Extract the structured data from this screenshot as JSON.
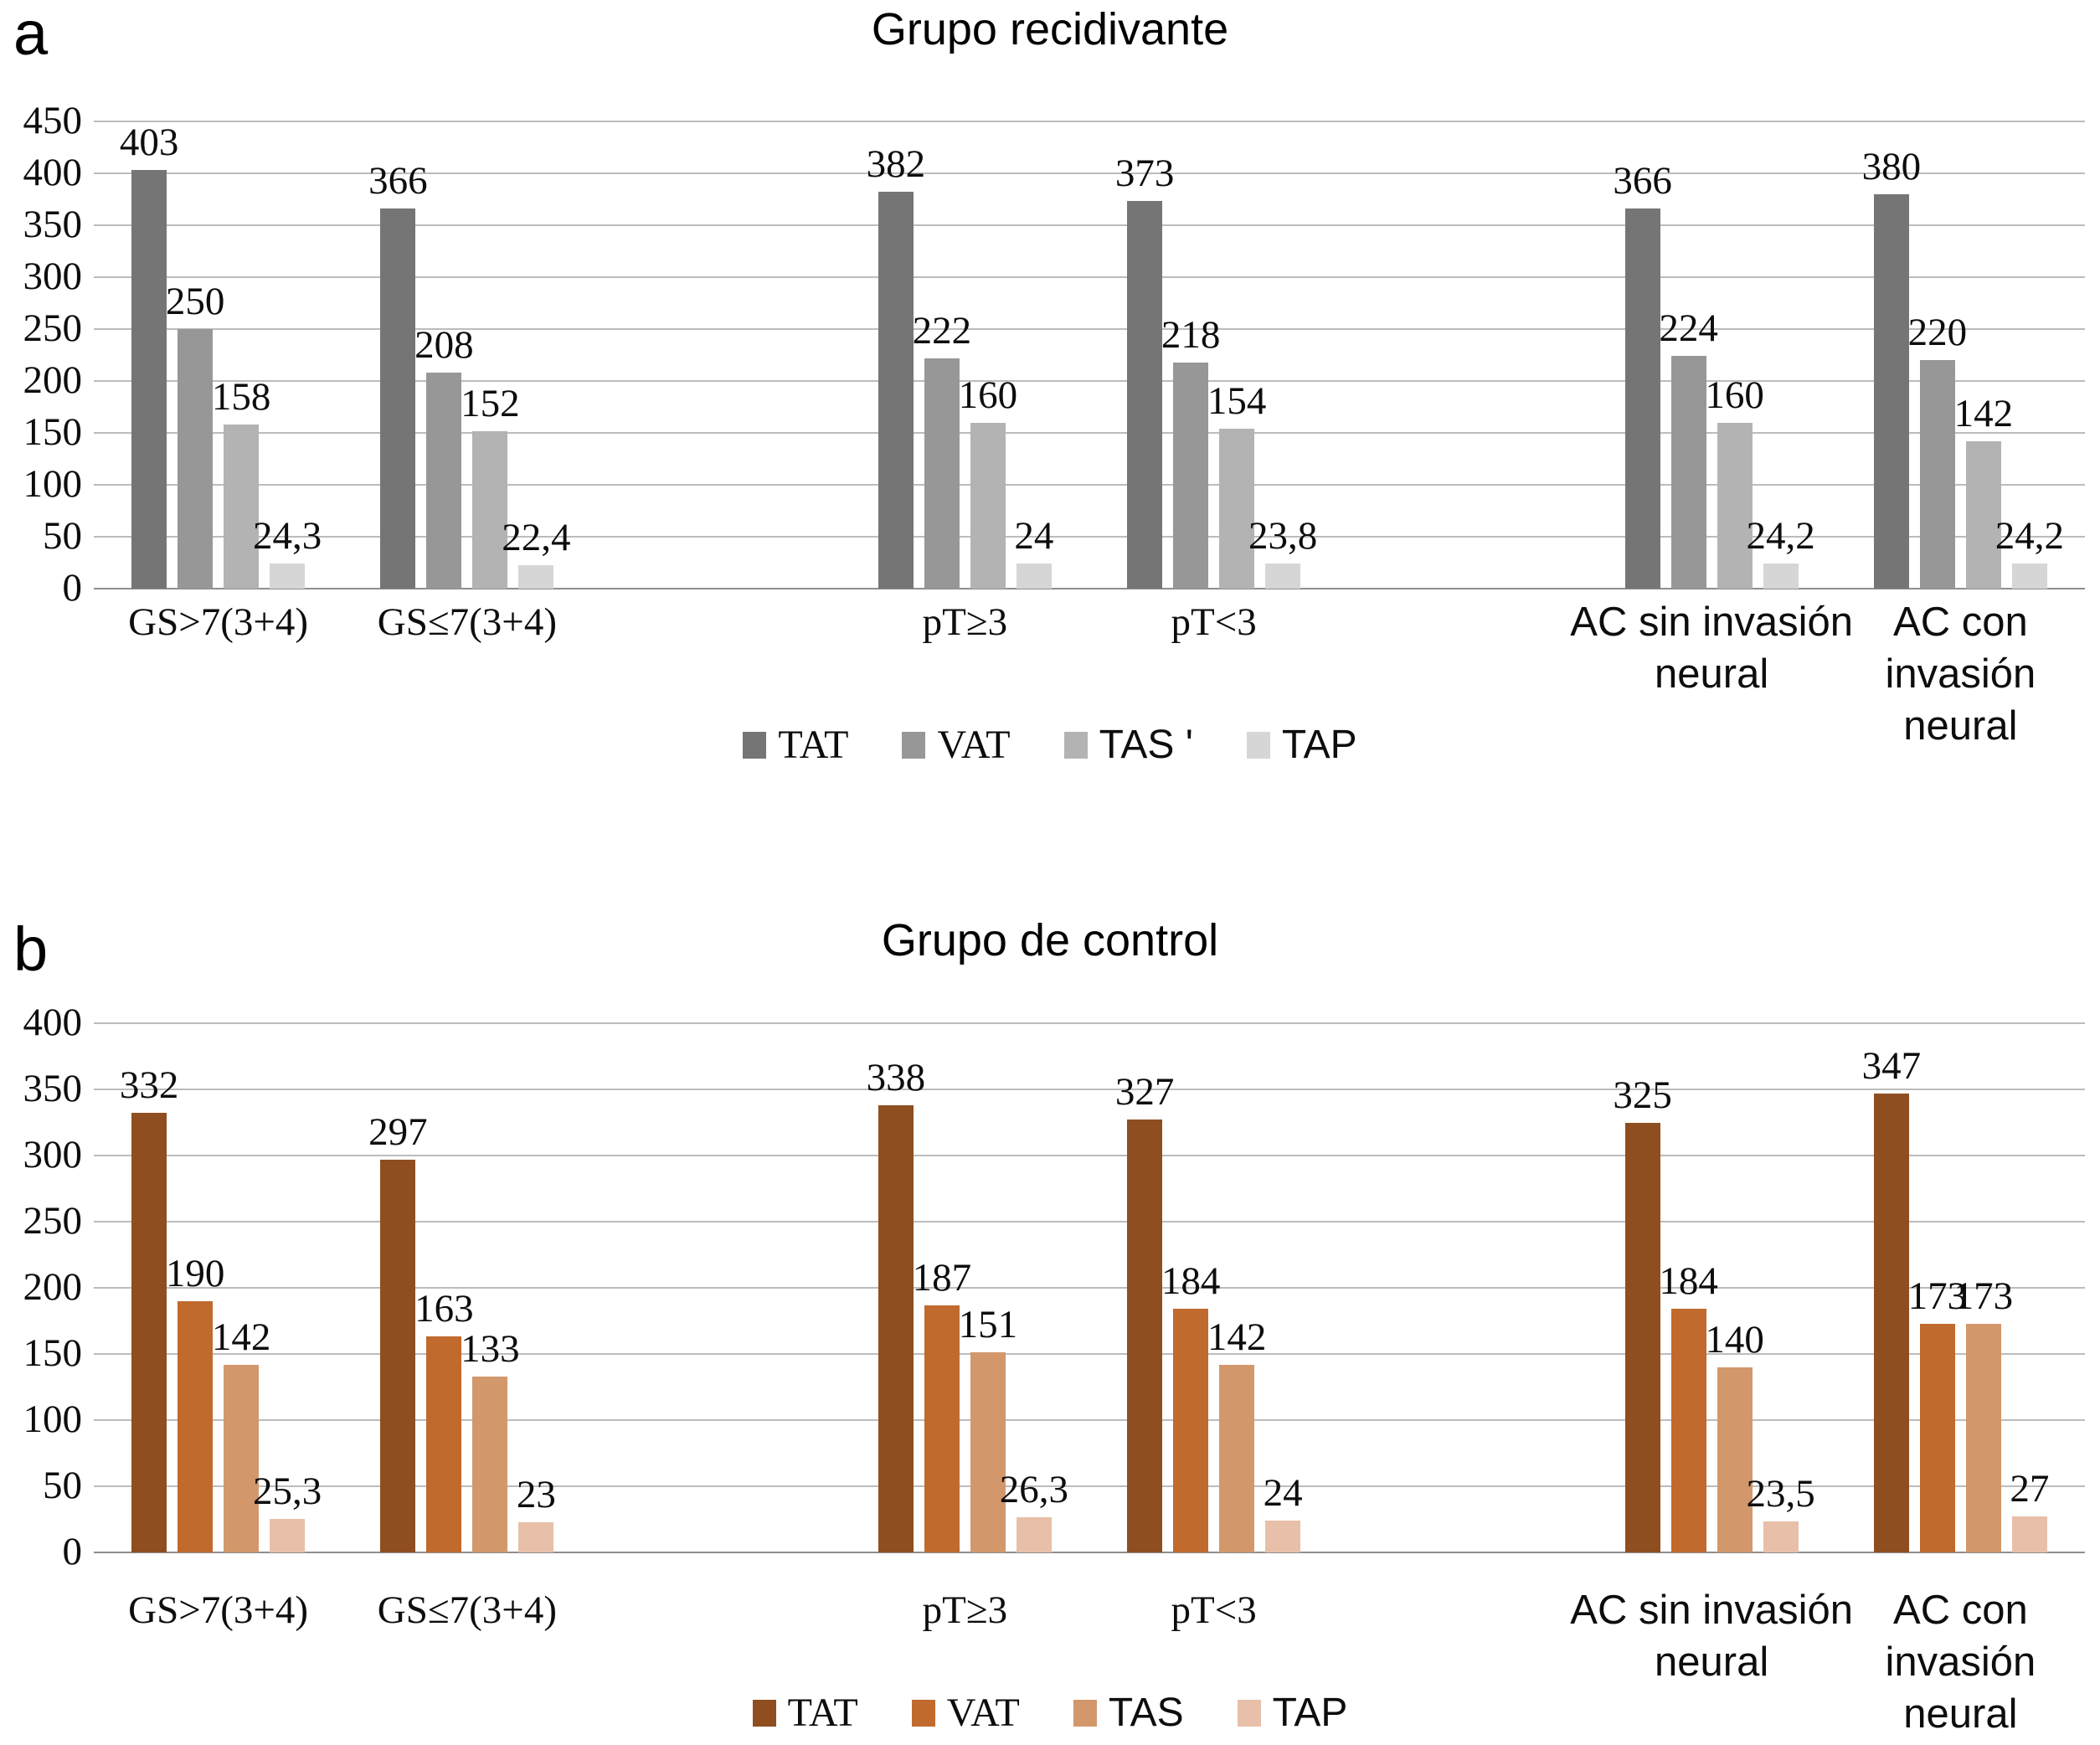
{
  "figure": {
    "background": "#ffffff",
    "gridline_color": "#bcbcbc",
    "axis_line_color": "#8e8e8e"
  },
  "chart_data": [
    {
      "type": "bar",
      "panel_letter": "a",
      "title": "Grupo recidivante",
      "xlabel": "",
      "ylabel": "",
      "ylim": [
        0,
        450
      ],
      "ytick_step": 50,
      "yticks": [
        "0",
        "50",
        "100",
        "150",
        "200",
        "250",
        "300",
        "350",
        "400",
        "450"
      ],
      "grid": true,
      "legend_position": "bottom",
      "categories": [
        "GS>7(3+4)",
        "GS≤7(3+4)",
        "pT≥3",
        "pT<3",
        "AC sin invasión neural",
        "AC con invasión neural"
      ],
      "category_label_lines": [
        [
          "GS>7(3+4)"
        ],
        [
          "GS≤7(3+4)"
        ],
        [
          "pT≥3"
        ],
        [
          "pT<3"
        ],
        [
          "AC sin invasión",
          "neural"
        ],
        [
          "AC con",
          "invasión",
          "neural"
        ]
      ],
      "category_label_fonts": [
        "serif",
        "serif",
        "serif",
        "serif",
        "sans",
        "sans"
      ],
      "series": [
        {
          "name": "TAT",
          "color": "#757575",
          "values": [
            403,
            366,
            382,
            373,
            366,
            380
          ],
          "value_labels": [
            "403",
            "366",
            "382",
            "373",
            "366",
            "380"
          ]
        },
        {
          "name": "VAT",
          "color": "#979797",
          "values": [
            250,
            208,
            222,
            218,
            224,
            220
          ],
          "value_labels": [
            "250",
            "208",
            "222",
            "218",
            "224",
            "220"
          ]
        },
        {
          "name": "TAS",
          "color": "#b3b3b3",
          "values": [
            158,
            152,
            160,
            154,
            160,
            142
          ],
          "value_labels": [
            "158",
            "152",
            "160",
            "154",
            "160",
            "142"
          ]
        },
        {
          "name": "TAP",
          "color": "#d6d6d6",
          "values": [
            24.3,
            22.4,
            24,
            23.8,
            24.2,
            24.2
          ],
          "value_labels": [
            "24,3",
            "22,4",
            "24",
            "23,8",
            "24,2",
            "24,2"
          ]
        }
      ],
      "legend": [
        {
          "label": "TAT",
          "font": "serif"
        },
        {
          "label": "VAT",
          "font": "serif"
        },
        {
          "label": "TAS '",
          "font": "sans"
        },
        {
          "label": "TAP",
          "font": "sans"
        }
      ]
    },
    {
      "type": "bar",
      "panel_letter": "b",
      "title": "Grupo de control",
      "xlabel": "",
      "ylabel": "",
      "ylim": [
        0,
        400
      ],
      "ytick_step": 50,
      "yticks": [
        "0",
        "50",
        "100",
        "150",
        "200",
        "250",
        "300",
        "350",
        "400"
      ],
      "grid": true,
      "legend_position": "bottom",
      "categories": [
        "GS>7(3+4)",
        "GS≤7(3+4)",
        "pT≥3",
        "pT<3",
        "AC sin invasión neural",
        "AC con invasión neural"
      ],
      "category_label_lines": [
        [
          "GS>7(3+4)"
        ],
        [
          "GS≤7(3+4)"
        ],
        [
          "pT≥3"
        ],
        [
          "pT<3"
        ],
        [
          "AC sin invasión",
          "neural"
        ],
        [
          "AC con",
          "invasión",
          "neural"
        ]
      ],
      "category_label_fonts": [
        "serif",
        "serif",
        "serif",
        "serif",
        "sans",
        "sans"
      ],
      "series": [
        {
          "name": "TAT",
          "color": "#8e4e20",
          "values": [
            332,
            297,
            338,
            327,
            325,
            347
          ],
          "value_labels": [
            "332",
            "297",
            "338",
            "327",
            "325",
            "347"
          ]
        },
        {
          "name": "VAT",
          "color": "#c06a2e",
          "values": [
            190,
            163,
            187,
            184,
            184,
            173
          ],
          "value_labels": [
            "190",
            "163",
            "187",
            "184",
            "184",
            "173"
          ]
        },
        {
          "name": "TAS",
          "color": "#d3976c",
          "values": [
            142,
            133,
            151,
            142,
            140,
            173
          ],
          "value_labels": [
            "142",
            "133",
            "151",
            "142",
            "140",
            "173"
          ]
        },
        {
          "name": "TAP",
          "color": "#e8bfa9",
          "values": [
            25.3,
            23,
            26.3,
            24,
            23.5,
            27
          ],
          "value_labels": [
            "25,3",
            "23",
            "26,3",
            "24",
            "23,5",
            "27"
          ]
        }
      ],
      "legend": [
        {
          "label": "TAT",
          "font": "serif"
        },
        {
          "label": "VAT",
          "font": "serif"
        },
        {
          "label": "TAS",
          "font": "sans"
        },
        {
          "label": "TAP",
          "font": "sans"
        }
      ]
    }
  ]
}
